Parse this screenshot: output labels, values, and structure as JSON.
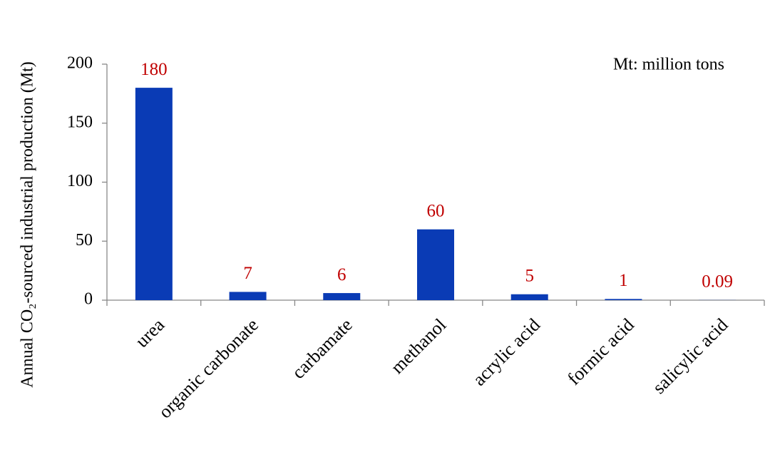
{
  "chart_data": {
    "type": "bar",
    "y_label": "Annual CO₂-sourced industrial production (Mt)",
    "annotation": "Mt: million tons",
    "categories": [
      "urea",
      "organic carbonate",
      "carbamate",
      "methanol",
      "acrylic acid",
      "formic acid",
      "salicylic acid"
    ],
    "values": [
      180,
      7,
      6,
      60,
      5,
      1,
      0.09
    ],
    "color": "#0a3bb5",
    "label_color": "#c00000",
    "ylim": [
      0,
      200
    ],
    "yticks": [
      0,
      50,
      100,
      150,
      200
    ],
    "grid": false
  }
}
